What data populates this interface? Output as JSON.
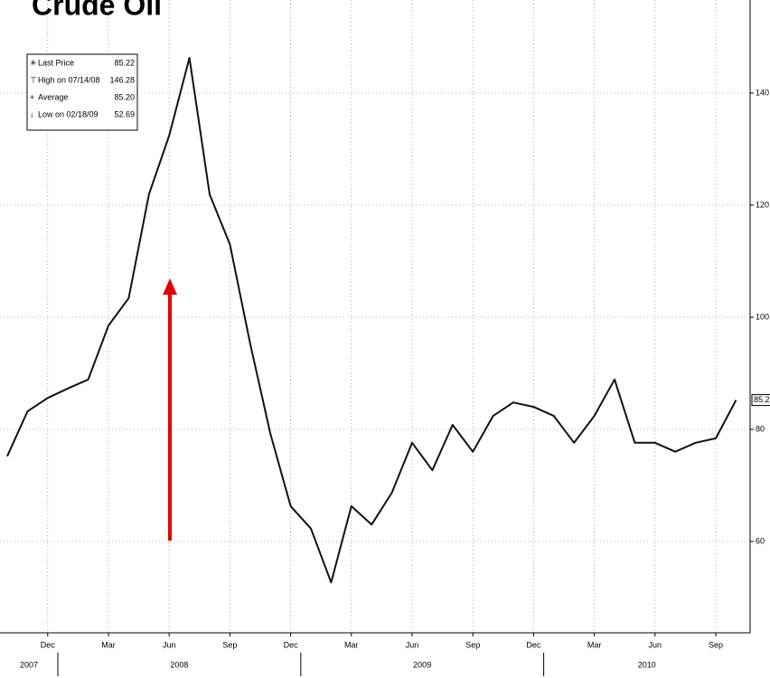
{
  "chart_data": {
    "type": "line",
    "title": "Crude Oil",
    "x": [
      "2007-10",
      "2007-11",
      "2007-12",
      "2008-01",
      "2008-02",
      "2008-03",
      "2008-04",
      "2008-05",
      "2008-06",
      "2008-07",
      "2008-08",
      "2008-09",
      "2008-10",
      "2008-11",
      "2008-12",
      "2009-01",
      "2009-02",
      "2009-03",
      "2009-04",
      "2009-05",
      "2009-06",
      "2009-07",
      "2009-08",
      "2009-09",
      "2009-10",
      "2009-11",
      "2009-12",
      "2010-01",
      "2010-02",
      "2010-03",
      "2010-04",
      "2010-05",
      "2010-06",
      "2010-07",
      "2010-08",
      "2010-09",
      "2010-10"
    ],
    "series": [
      {
        "name": "Last Price",
        "color": "#111111",
        "values": [
          75.2,
          83.2,
          85.6,
          87.3,
          88.9,
          98.5,
          103.4,
          121.9,
          132.4,
          146.28,
          121.9,
          113,
          95.3,
          79.2,
          66.3,
          62.3,
          52.69,
          66.3,
          63,
          68.7,
          77.6,
          72.7,
          80.8,
          76,
          82.4,
          84.8,
          84,
          82.4,
          77.6,
          82.4,
          88.9,
          77.6,
          77.6,
          76,
          77.6,
          78.4,
          85.22
        ]
      }
    ],
    "legend_stats": [
      {
        "label": "Last Price",
        "value": "85.22"
      },
      {
        "label": "High on 07/14/08",
        "value": "146.28"
      },
      {
        "label": "Average",
        "value": "85.20"
      },
      {
        "label": "Low on 02/18/09",
        "value": "52.69"
      }
    ],
    "xticks": [
      {
        "value": "2007-12",
        "label": "Dec"
      },
      {
        "value": "2008-03",
        "label": "Mar"
      },
      {
        "value": "2008-06",
        "label": "Jun"
      },
      {
        "value": "2008-09",
        "label": "Sep"
      },
      {
        "value": "2008-12",
        "label": "Dec"
      },
      {
        "value": "2009-03",
        "label": "Mar"
      },
      {
        "value": "2009-06",
        "label": "Jun"
      },
      {
        "value": "2009-09",
        "label": "Sep"
      },
      {
        "value": "2009-12",
        "label": "Dec"
      },
      {
        "value": "2010-03",
        "label": "Mar"
      },
      {
        "value": "2010-06",
        "label": "Jun"
      },
      {
        "value": "2010-09",
        "label": "Sep"
      }
    ],
    "years": [
      "2007",
      "2008",
      "2009",
      "2010"
    ],
    "ylim": [
      43.7,
      156.6
    ],
    "yticks": [
      60,
      80,
      100,
      120,
      140
    ],
    "grid": true,
    "y_axis_side": "right"
  }
}
